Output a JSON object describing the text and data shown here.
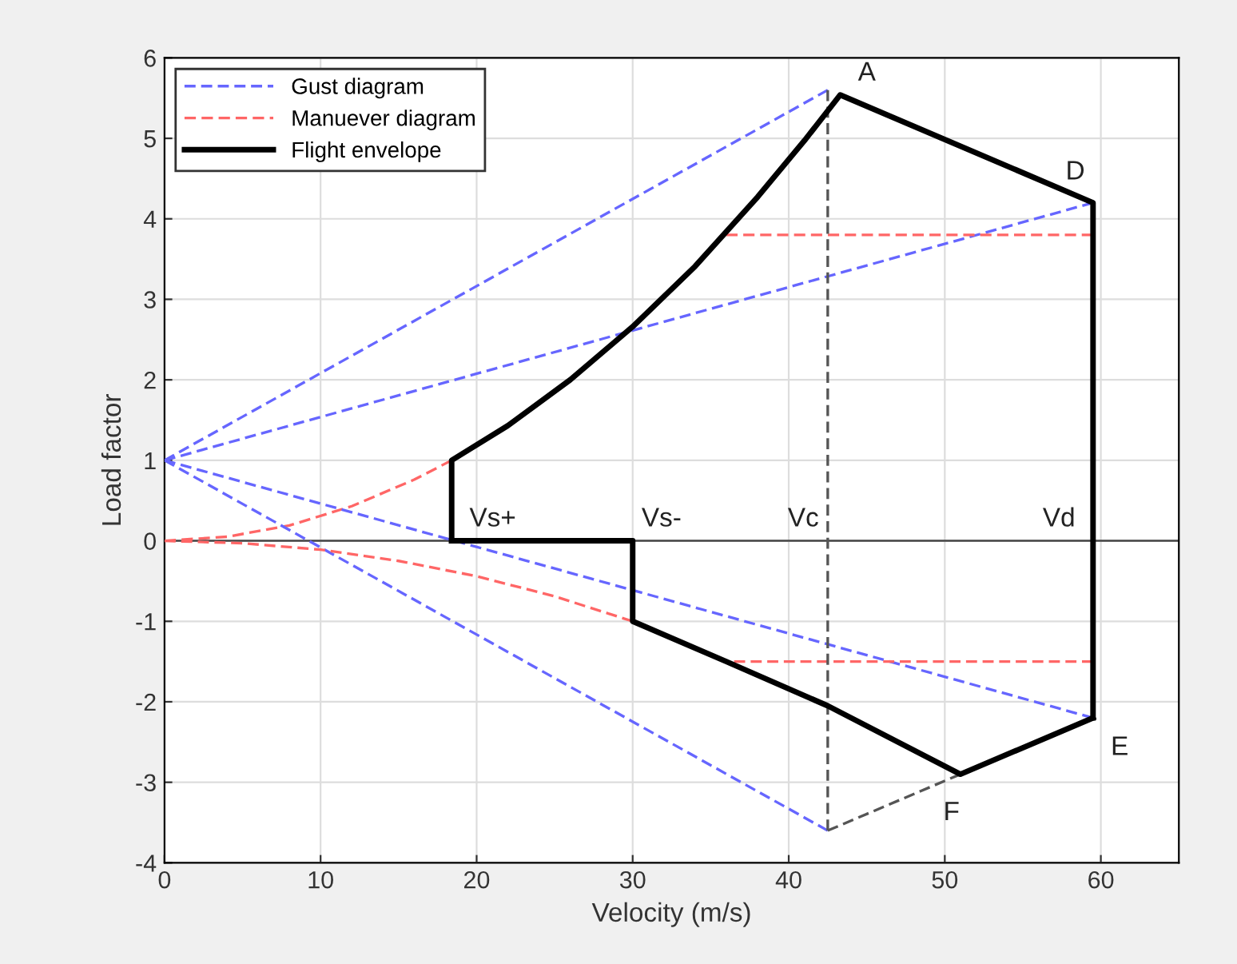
{
  "chart_data": {
    "type": "line",
    "xlabel": "Velocity (m/s)",
    "ylabel": "Load factor",
    "xlim": [
      0,
      65
    ],
    "ylim": [
      -4,
      6
    ],
    "xticks": [
      0,
      10,
      20,
      30,
      40,
      50,
      60
    ],
    "yticks": [
      -4,
      -3,
      -2,
      -1,
      0,
      1,
      2,
      3,
      4,
      5,
      6
    ],
    "grid": true,
    "legend": "top left",
    "ref_lines": [
      {
        "axis": "y",
        "value": 0,
        "color": "#444444",
        "line_style": "solid"
      }
    ],
    "series": [
      {
        "name": "Gust diagram",
        "color": "#6666ff",
        "line_style": "dashed",
        "x": [
          0,
          42.5
        ],
        "values": [
          1,
          5.6
        ]
      },
      {
        "name": "Manuever diagram",
        "color": "#ff6666",
        "line_style": "dashed",
        "x": [
          0,
          4,
          8,
          12,
          16,
          18.4
        ],
        "values": [
          0,
          0.05,
          0.19,
          0.43,
          0.76,
          1
        ]
      },
      {
        "name": "Flight envelope",
        "color": "#000000",
        "line_style": "solid",
        "x": [
          18.4,
          18.4,
          22,
          26,
          30,
          34,
          38,
          41,
          43.3,
          59.5,
          59.5
        ],
        "values": [
          0,
          1,
          1.43,
          2.0,
          2.66,
          3.41,
          4.27,
          4.97,
          5.54,
          4.2,
          -2.2
        ]
      },
      {
        "color": "#000000",
        "line_style": "solid",
        "x": [
          18.4,
          30,
          30,
          36,
          42.5,
          51,
          59.5
        ],
        "values": [
          0,
          0,
          -1,
          -1.5,
          -2.05,
          -2.9,
          -2.2
        ]
      },
      {
        "color": "#6666ff",
        "line_style": "dashed",
        "x": [
          0,
          59.5
        ],
        "values": [
          1,
          4.2
        ]
      },
      {
        "color": "#6666ff",
        "line_style": "dashed",
        "x": [
          0,
          42.5
        ],
        "values": [
          1,
          -3.6
        ]
      },
      {
        "color": "#6666ff",
        "line_style": "dashed",
        "x": [
          0,
          59.5
        ],
        "values": [
          1,
          -2.2
        ]
      },
      {
        "color": "#ff6666",
        "line_style": "dashed",
        "x": [
          0,
          5,
          10,
          15,
          20,
          25,
          30
        ],
        "values": [
          0,
          -0.03,
          -0.11,
          -0.25,
          -0.44,
          -0.69,
          -1
        ]
      },
      {
        "color": "#ff6666",
        "line_style": "dashed",
        "x": [
          36,
          59.5
        ],
        "values": [
          3.8,
          3.8
        ]
      },
      {
        "color": "#ff6666",
        "line_style": "dashed",
        "x": [
          36.5,
          59.5
        ],
        "values": [
          -1.5,
          -1.5
        ]
      },
      {
        "color": "#555555",
        "line_style": "dashed",
        "x": [
          42.5,
          42.5
        ],
        "values": [
          -3.6,
          5.6
        ]
      },
      {
        "color": "#555555",
        "line_style": "dashed",
        "x": [
          42.5,
          51
        ],
        "values": [
          -3.6,
          -2.9
        ]
      }
    ],
    "annotations": [
      {
        "text": "A",
        "x": 43.3,
        "y": 5.54
      },
      {
        "text": "D",
        "x": 59.5,
        "y": 4.2
      },
      {
        "text": "E",
        "x": 59.5,
        "y": -2.2
      },
      {
        "text": "F",
        "x": 51,
        "y": -2.9
      },
      {
        "text": "Vs+",
        "x": 18.4,
        "y": 0
      },
      {
        "text": "Vs-",
        "x": 30,
        "y": 0
      },
      {
        "text": "Vc",
        "x": 42.5,
        "y": 0
      },
      {
        "text": "Vd",
        "x": 59.5,
        "y": 0
      }
    ]
  }
}
